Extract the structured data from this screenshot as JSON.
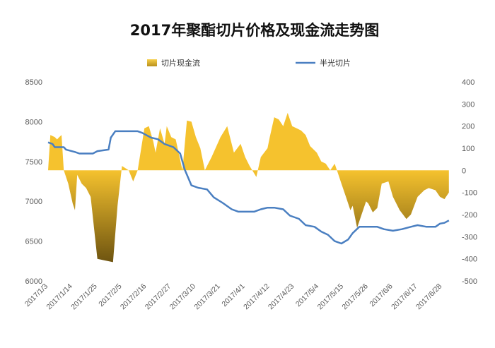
{
  "chart_data": {
    "type": "area+line",
    "title": "2017年聚酯切片价格及现金流走势图",
    "legend": {
      "placement": "top",
      "entries": [
        "切片现金流",
        "半光切片"
      ]
    },
    "grid": false,
    "colors": {
      "area_positive": "#F5C22E",
      "area_negative_dark": "#6E5410",
      "line": "#4A7FC1"
    },
    "y_left": {
      "range": [
        6000,
        8500
      ],
      "ticks": [
        6000,
        6500,
        7000,
        7500,
        8000,
        8500
      ]
    },
    "y_right": {
      "range": [
        -500,
        400
      ],
      "ticks": [
        -500,
        -400,
        -300,
        -200,
        -100,
        0,
        100,
        200,
        300,
        400
      ]
    },
    "x_tick_labels": [
      "2017/1/3",
      "2017/1/14",
      "2017/1/25",
      "2017/2/5",
      "2017/2/16",
      "2017/2/27",
      "2017/3/10",
      "2017/3/21",
      "2017/4/1",
      "2017/4/12",
      "2017/4/23",
      "2017/5/4",
      "2017/5/15",
      "2017/5/26",
      "2017/6/6",
      "2017/6/17",
      "2017/6/28"
    ],
    "x_range": [
      "2017-01-03",
      "2017-07-02"
    ],
    "series": [
      {
        "name": "切片现金流",
        "axis": "right",
        "type": "area",
        "points": [
          [
            "2017-01-03",
            0
          ],
          [
            "2017-01-04",
            160
          ],
          [
            "2017-01-06",
            150
          ],
          [
            "2017-01-07",
            140
          ],
          [
            "2017-01-08",
            150
          ],
          [
            "2017-01-09",
            160
          ],
          [
            "2017-01-10",
            0
          ],
          [
            "2017-01-12",
            -60
          ],
          [
            "2017-01-14",
            -150
          ],
          [
            "2017-01-15",
            -180
          ],
          [
            "2017-01-16",
            -20
          ],
          [
            "2017-01-18",
            -60
          ],
          [
            "2017-01-20",
            -80
          ],
          [
            "2017-01-22",
            -120
          ],
          [
            "2017-01-25",
            -400
          ],
          [
            "2017-02-01",
            -415
          ],
          [
            "2017-02-03",
            -160
          ],
          [
            "2017-02-05",
            20
          ],
          [
            "2017-02-08",
            0
          ],
          [
            "2017-02-10",
            -50
          ],
          [
            "2017-02-12",
            0
          ],
          [
            "2017-02-15",
            190
          ],
          [
            "2017-02-17",
            200
          ],
          [
            "2017-02-19",
            130
          ],
          [
            "2017-02-20",
            80
          ],
          [
            "2017-02-22",
            190
          ],
          [
            "2017-02-24",
            120
          ],
          [
            "2017-02-25",
            200
          ],
          [
            "2017-02-27",
            150
          ],
          [
            "2017-03-01",
            140
          ],
          [
            "2017-03-04",
            0
          ],
          [
            "2017-03-06",
            225
          ],
          [
            "2017-03-08",
            220
          ],
          [
            "2017-03-10",
            150
          ],
          [
            "2017-03-12",
            100
          ],
          [
            "2017-03-14",
            0
          ],
          [
            "2017-03-17",
            60
          ],
          [
            "2017-03-21",
            150
          ],
          [
            "2017-03-24",
            200
          ],
          [
            "2017-03-27",
            80
          ],
          [
            "2017-03-30",
            120
          ],
          [
            "2017-04-01",
            60
          ],
          [
            "2017-04-03",
            20
          ],
          [
            "2017-04-06",
            -30
          ],
          [
            "2017-04-08",
            60
          ],
          [
            "2017-04-11",
            100
          ],
          [
            "2017-04-12",
            150
          ],
          [
            "2017-04-14",
            240
          ],
          [
            "2017-04-16",
            230
          ],
          [
            "2017-04-18",
            200
          ],
          [
            "2017-04-20",
            260
          ],
          [
            "2017-04-22",
            200
          ],
          [
            "2017-04-24",
            190
          ],
          [
            "2017-04-26",
            180
          ],
          [
            "2017-04-28",
            160
          ],
          [
            "2017-04-30",
            110
          ],
          [
            "2017-05-03",
            80
          ],
          [
            "2017-05-05",
            40
          ],
          [
            "2017-05-07",
            30
          ],
          [
            "2017-05-09",
            0
          ],
          [
            "2017-05-11",
            30
          ],
          [
            "2017-05-12",
            0
          ],
          [
            "2017-05-14",
            -60
          ],
          [
            "2017-05-16",
            -120
          ],
          [
            "2017-05-18",
            -180
          ],
          [
            "2017-05-19",
            -160
          ],
          [
            "2017-05-21",
            -260
          ],
          [
            "2017-05-23",
            -200
          ],
          [
            "2017-05-25",
            -140
          ],
          [
            "2017-05-26",
            -150
          ],
          [
            "2017-05-28",
            -190
          ],
          [
            "2017-05-30",
            -170
          ],
          [
            "2017-06-01",
            -60
          ],
          [
            "2017-06-04",
            -50
          ],
          [
            "2017-06-06",
            -120
          ],
          [
            "2017-06-09",
            -180
          ],
          [
            "2017-06-12",
            -220
          ],
          [
            "2017-06-14",
            -200
          ],
          [
            "2017-06-17",
            -120
          ],
          [
            "2017-06-20",
            -90
          ],
          [
            "2017-06-22",
            -80
          ],
          [
            "2017-06-25",
            -90
          ],
          [
            "2017-06-27",
            -120
          ],
          [
            "2017-06-29",
            -130
          ],
          [
            "2017-07-01",
            -100
          ]
        ]
      },
      {
        "name": "半光切片",
        "axis": "left",
        "type": "line",
        "points": [
          [
            "2017-01-03",
            7740
          ],
          [
            "2017-01-05",
            7720
          ],
          [
            "2017-01-06",
            7680
          ],
          [
            "2017-01-10",
            7680
          ],
          [
            "2017-01-11",
            7650
          ],
          [
            "2017-01-15",
            7620
          ],
          [
            "2017-01-17",
            7600
          ],
          [
            "2017-01-23",
            7600
          ],
          [
            "2017-01-25",
            7630
          ],
          [
            "2017-01-30",
            7650
          ],
          [
            "2017-01-31",
            7800
          ],
          [
            "2017-02-02",
            7880
          ],
          [
            "2017-02-12",
            7880
          ],
          [
            "2017-02-14",
            7860
          ],
          [
            "2017-02-18",
            7800
          ],
          [
            "2017-02-21",
            7780
          ],
          [
            "2017-02-24",
            7720
          ],
          [
            "2017-02-28",
            7680
          ],
          [
            "2017-03-03",
            7600
          ],
          [
            "2017-03-05",
            7400
          ],
          [
            "2017-03-08",
            7200
          ],
          [
            "2017-03-11",
            7170
          ],
          [
            "2017-03-15",
            7150
          ],
          [
            "2017-03-18",
            7050
          ],
          [
            "2017-03-22",
            6980
          ],
          [
            "2017-03-26",
            6900
          ],
          [
            "2017-03-29",
            6870
          ],
          [
            "2017-04-02",
            6870
          ],
          [
            "2017-04-05",
            6870
          ],
          [
            "2017-04-08",
            6900
          ],
          [
            "2017-04-11",
            6920
          ],
          [
            "2017-04-14",
            6920
          ],
          [
            "2017-04-18",
            6900
          ],
          [
            "2017-04-21",
            6820
          ],
          [
            "2017-04-25",
            6780
          ],
          [
            "2017-04-28",
            6700
          ],
          [
            "2017-05-02",
            6680
          ],
          [
            "2017-05-05",
            6620
          ],
          [
            "2017-05-08",
            6580
          ],
          [
            "2017-05-11",
            6500
          ],
          [
            "2017-05-14",
            6470
          ],
          [
            "2017-05-17",
            6520
          ],
          [
            "2017-05-19",
            6600
          ],
          [
            "2017-05-22",
            6680
          ],
          [
            "2017-05-26",
            6680
          ],
          [
            "2017-05-30",
            6680
          ],
          [
            "2017-06-02",
            6650
          ],
          [
            "2017-06-06",
            6630
          ],
          [
            "2017-06-10",
            6650
          ],
          [
            "2017-06-14",
            6680
          ],
          [
            "2017-06-17",
            6700
          ],
          [
            "2017-06-21",
            6680
          ],
          [
            "2017-06-25",
            6680
          ],
          [
            "2017-06-27",
            6720
          ],
          [
            "2017-06-29",
            6730
          ],
          [
            "2017-07-01",
            6760
          ]
        ]
      }
    ]
  }
}
